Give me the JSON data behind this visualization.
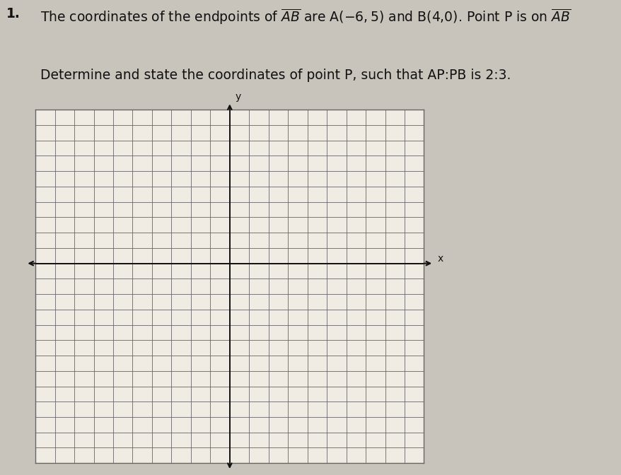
{
  "problem_number": "1.",
  "line1": "The coordinates of the endpoints of $\\overline{AB}$ are A(−6, 5) and B(4,0). Point P is on $\\overline{AB}$",
  "line2": "Determine and state the coordinates of point P, such that AP:PB is 2:3.",
  "x_label": "x",
  "y_label": "y",
  "x_min": -10,
  "x_max": 10,
  "y_min": -13,
  "y_max": 10,
  "grid_color": "#666666",
  "grid_linewidth": 0.6,
  "axis_color": "#111111",
  "axis_linewidth": 1.4,
  "background_color": "#c8c4bc",
  "grid_background": "#f0ece4",
  "text_color": "#111111",
  "title_fontsize": 13.5
}
